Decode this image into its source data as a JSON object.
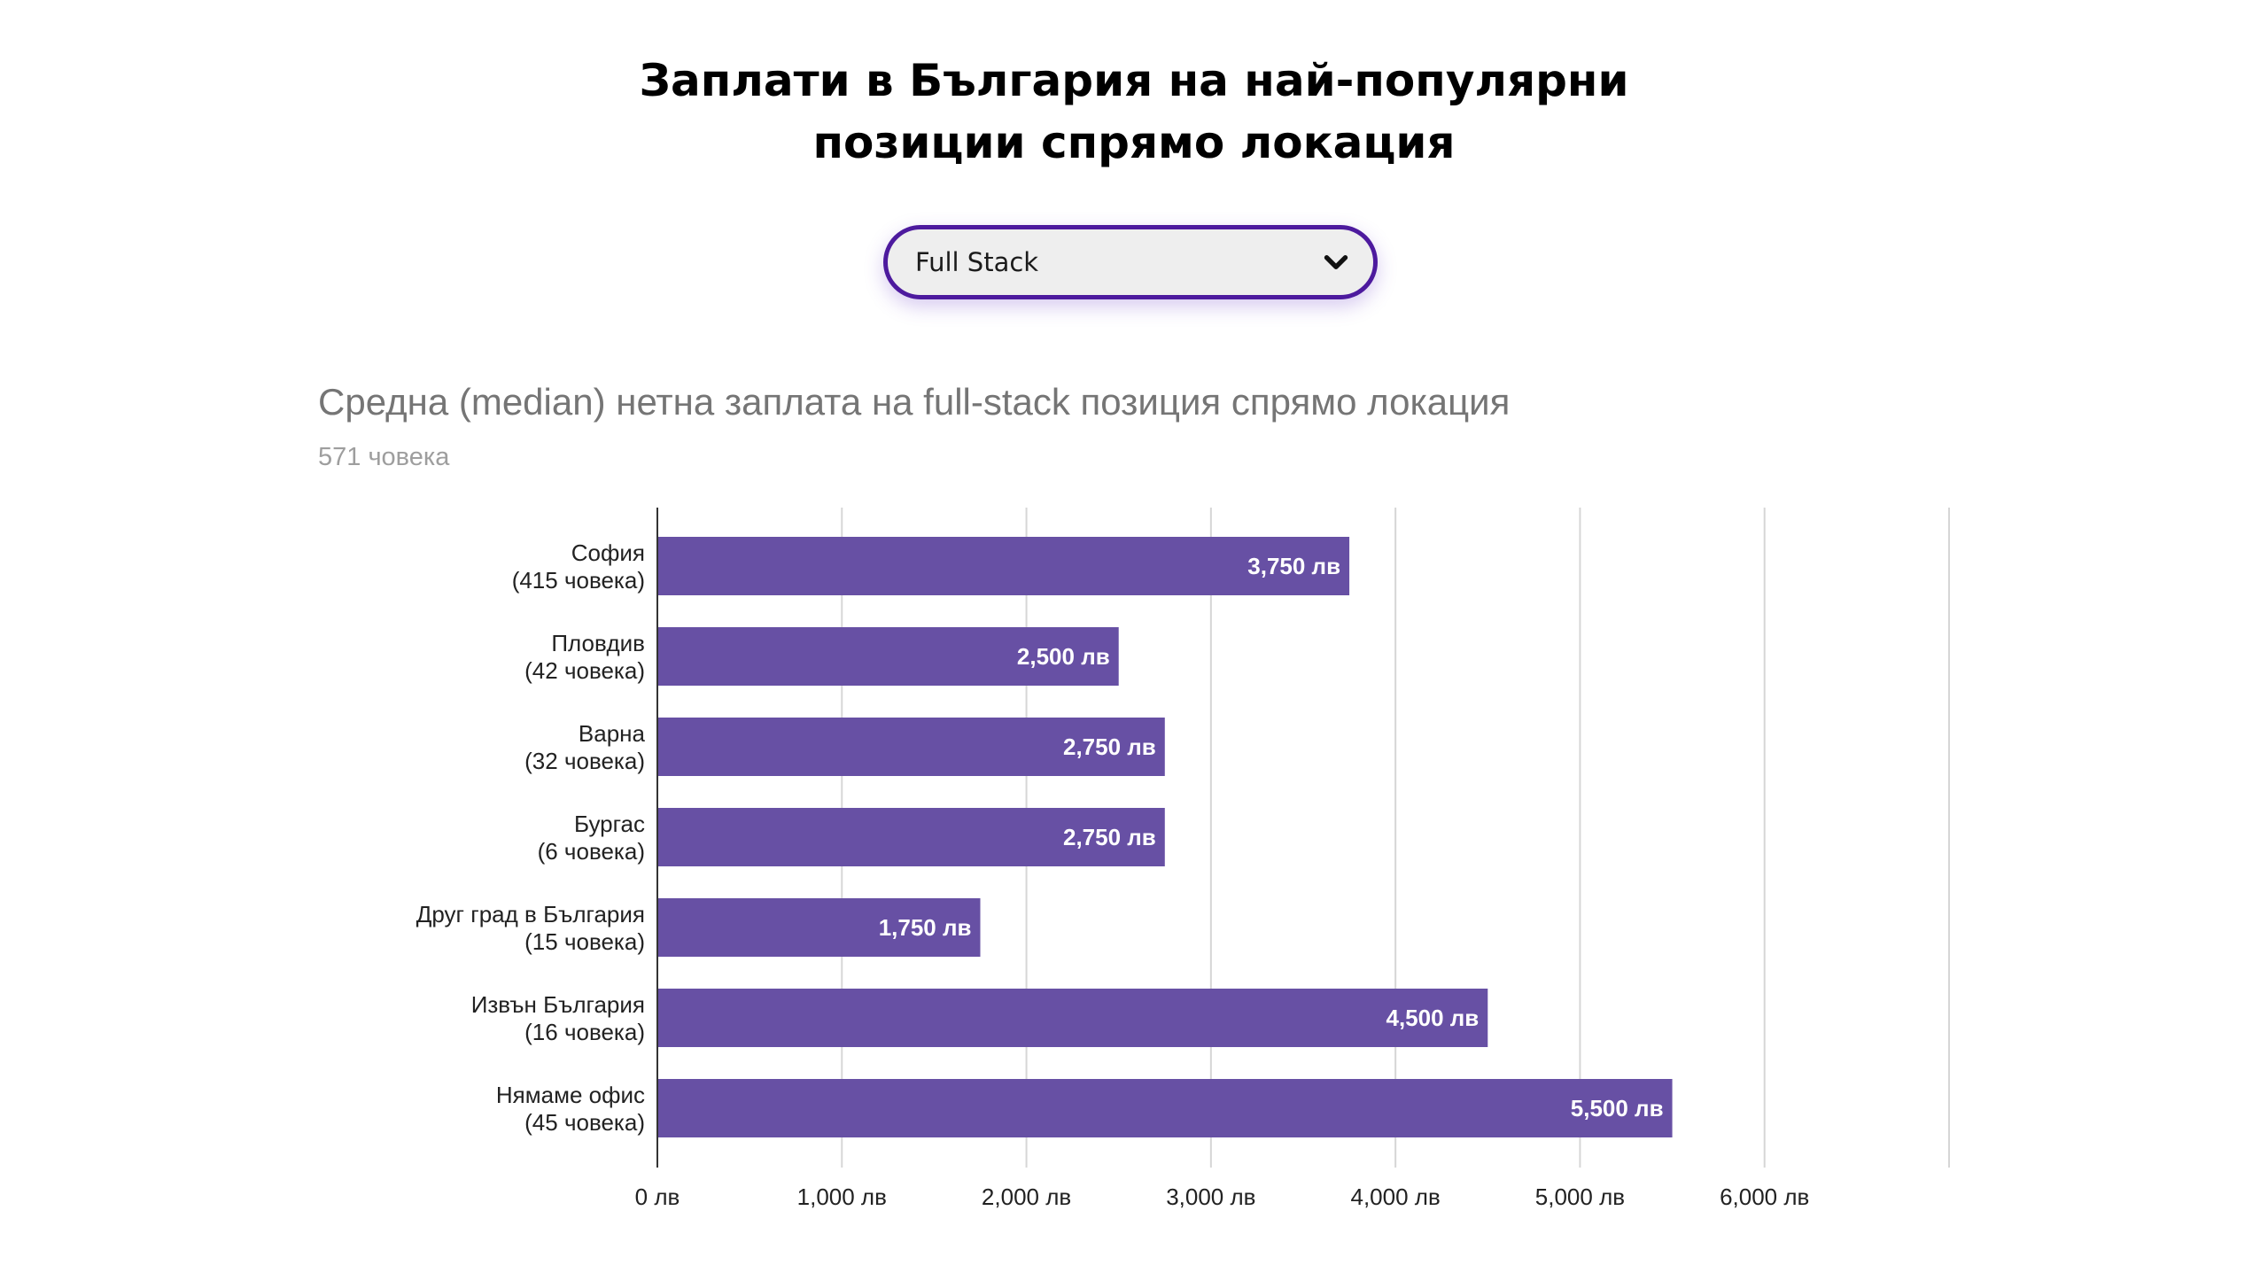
{
  "header": {
    "title_line1": "Заплати в България на най-популярни",
    "title_line2": "позиции спрямо локация"
  },
  "position_select": {
    "value": "Full Stack",
    "icon": "chevron-down-icon"
  },
  "colors": {
    "bar": "#6750a4",
    "select_border": "#4d1a9e",
    "gridline": "#d6d6d6",
    "axis": "#333333"
  },
  "chart_data": {
    "type": "bar",
    "orientation": "horizontal",
    "title": "Средна (median) нетна заплата на full-stack позиция спрямо локация",
    "subtitle": "571 човека",
    "categories": [
      [
        "София",
        "(415 човека)"
      ],
      [
        "Пловдив",
        "(42 човека)"
      ],
      [
        "Варна",
        "(32 човека)"
      ],
      [
        "Бургас",
        "(6 човека)"
      ],
      [
        "Друг град в България",
        "(15 човека)"
      ],
      [
        "Извън България",
        "(16 човека)"
      ],
      [
        "Нямаме офис",
        "(45 човека)"
      ]
    ],
    "values": [
      3750,
      2500,
      2750,
      2750,
      1750,
      4500,
      5500
    ],
    "value_labels": [
      "3,750 лв",
      "2,500 лв",
      "2,750 лв",
      "2,750 лв",
      "1,750 лв",
      "4,500 лв",
      "5,500 лв"
    ],
    "ticks": [
      0,
      1000,
      2000,
      3000,
      4000,
      5000,
      6000,
      7000
    ],
    "tick_labels": [
      "0 лв",
      "1,000 лв",
      "2,000 лв",
      "3,000 лв",
      "4,000 лв",
      "5,000 лв",
      "6,000 лв",
      ""
    ],
    "xlim": [
      0,
      7000
    ],
    "xlabel": "",
    "ylabel": "",
    "grid": true,
    "legend": "none"
  }
}
